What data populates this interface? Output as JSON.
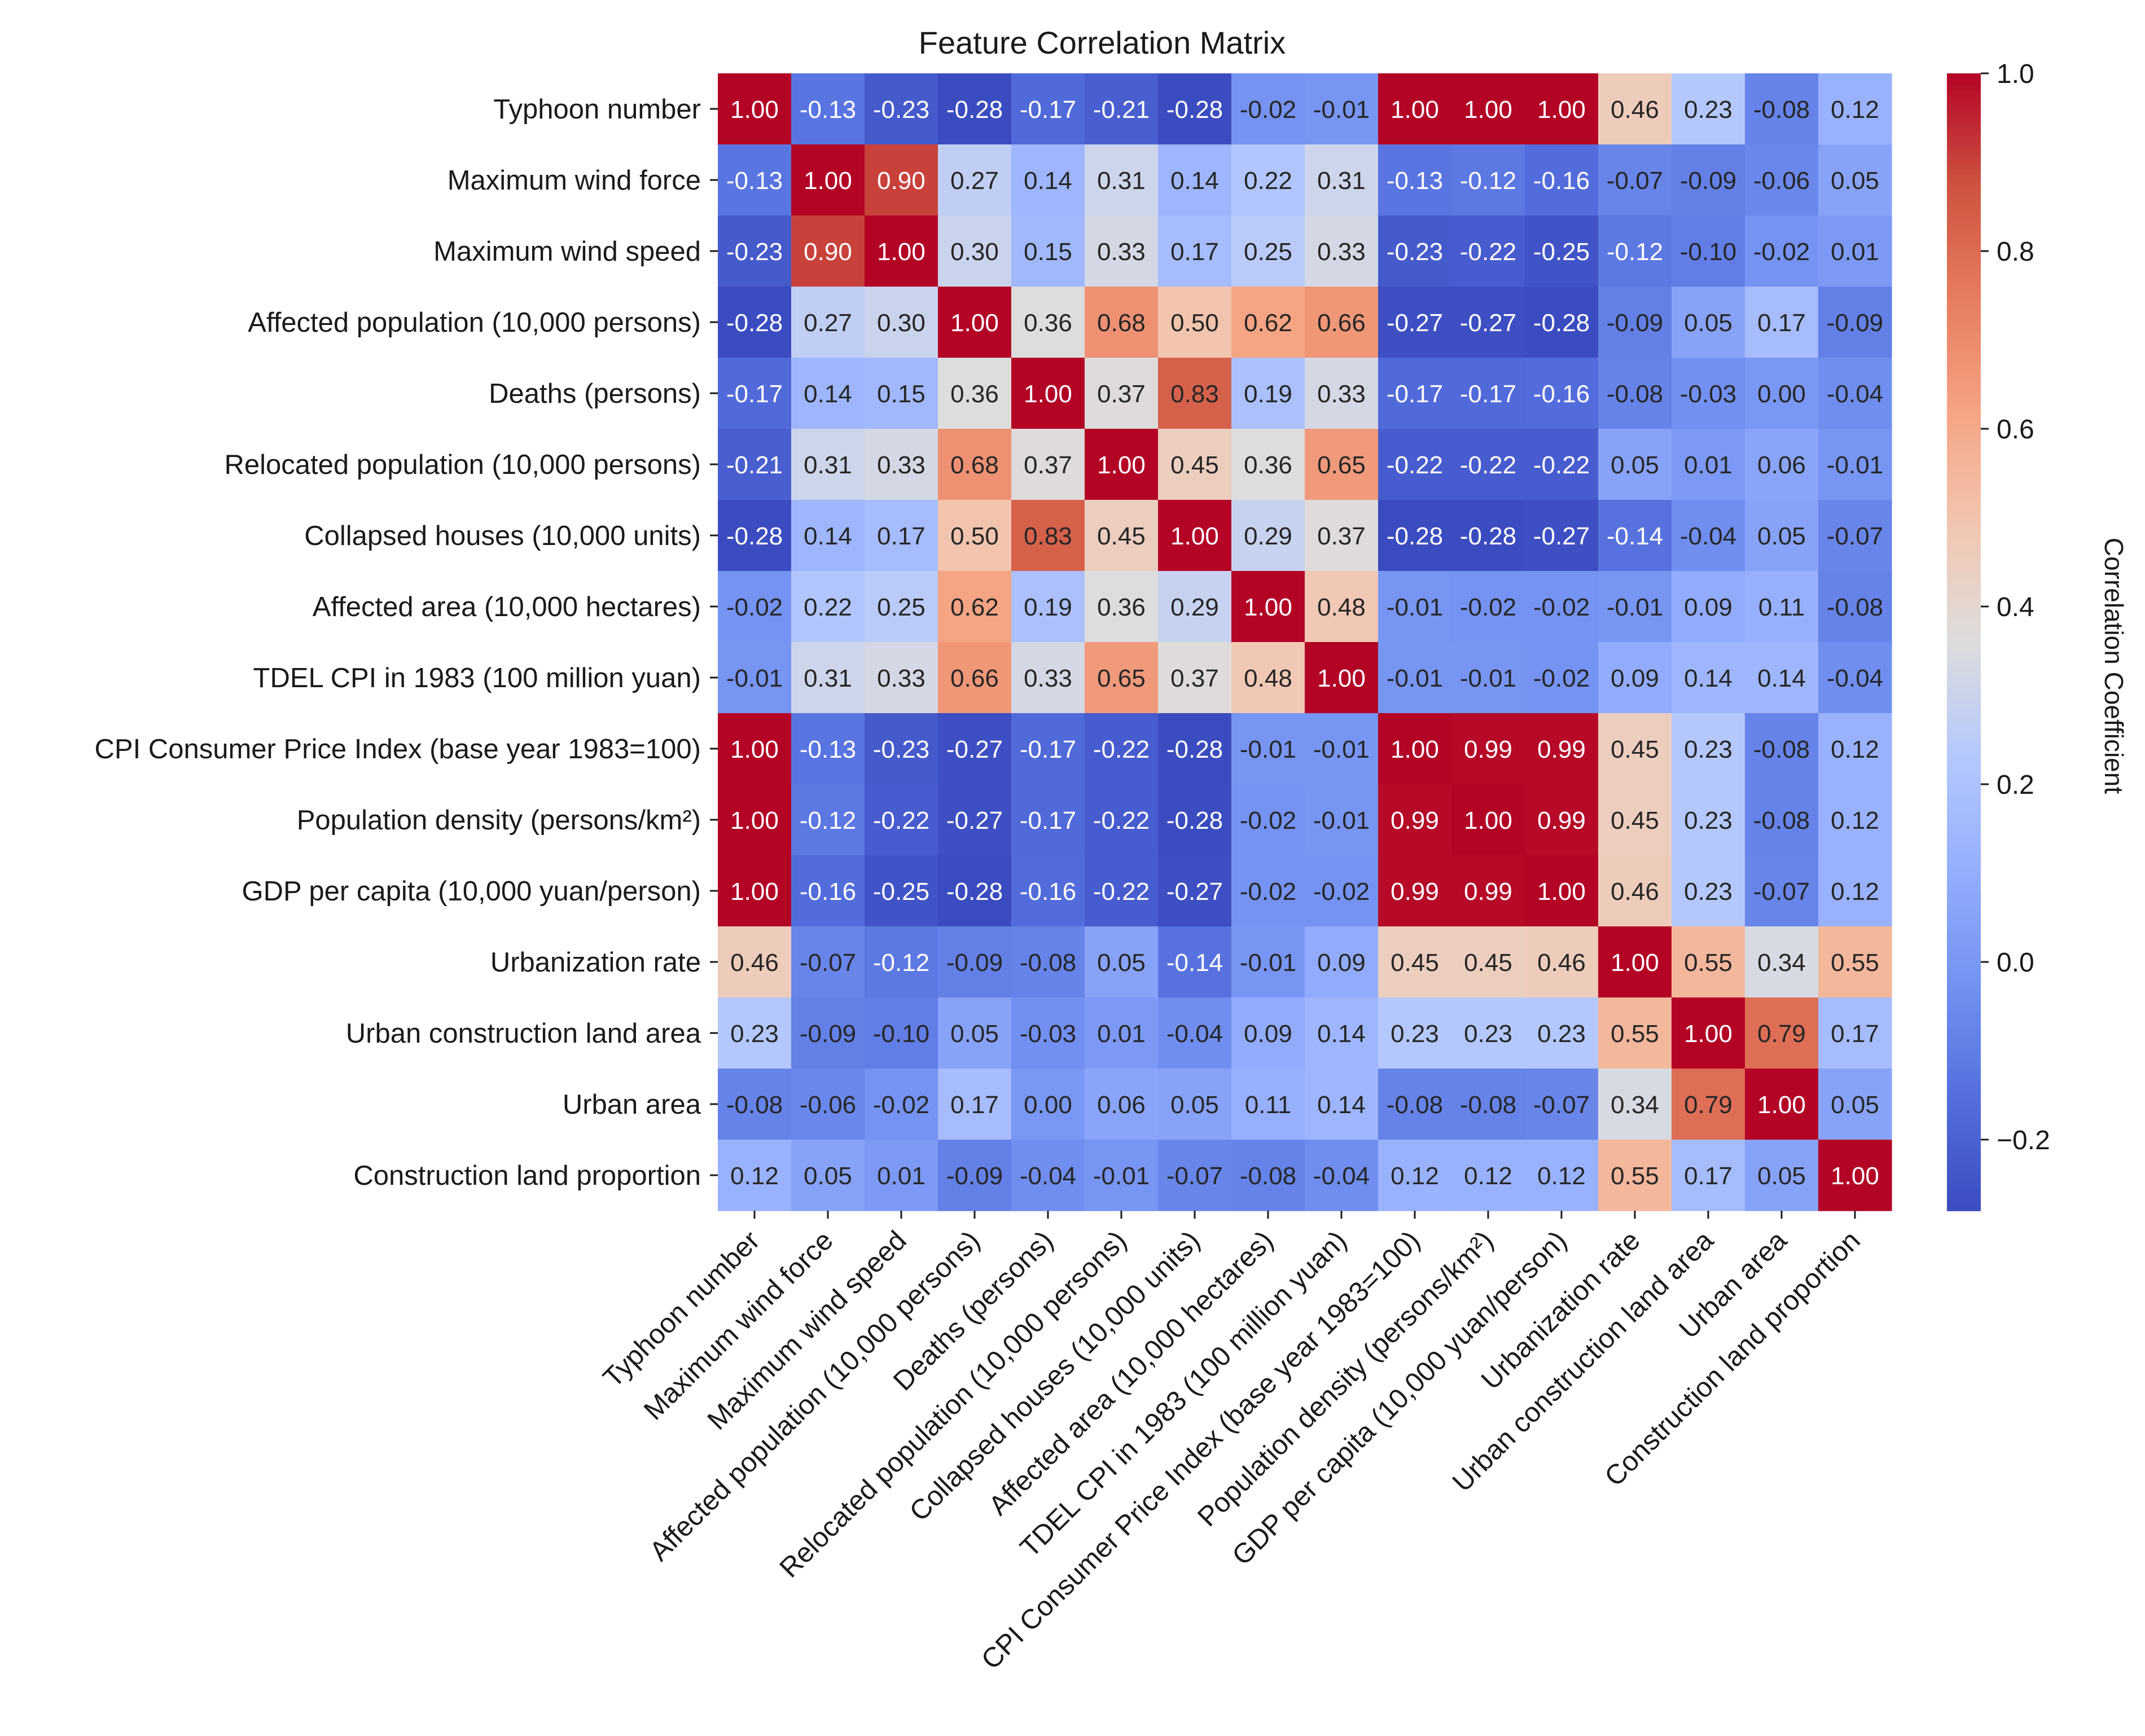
{
  "chart_data": {
    "type": "heatmap",
    "title": "Feature Correlation Matrix",
    "colormap": "coolwarm",
    "vmin": -0.28,
    "vmax": 1.0,
    "value_format": "2 decimals",
    "labels": [
      "Typhoon number",
      "Maximum wind force",
      "Maximum wind speed",
      "Affected population (10,000 persons)",
      "Deaths (persons)",
      "Relocated population (10,000 persons)",
      "Collapsed houses (10,000 units)",
      "Affected area (10,000 hectares)",
      "TDEL CPI in 1983 (100 million yuan)",
      "CPI Consumer Price Index (base year 1983=100)",
      "Population density (persons/km²)",
      "GDP per capita (10,000 yuan/person)",
      "Urbanization rate",
      "Urban construction land area",
      "Urban area",
      "Construction land proportion"
    ],
    "matrix": [
      [
        1.0,
        -0.13,
        -0.23,
        -0.28,
        -0.17,
        -0.21,
        -0.28,
        -0.02,
        -0.01,
        1.0,
        1.0,
        1.0,
        0.46,
        0.23,
        -0.08,
        0.12
      ],
      [
        -0.13,
        1.0,
        0.9,
        0.27,
        0.14,
        0.31,
        0.14,
        0.22,
        0.31,
        -0.13,
        -0.12,
        -0.16,
        -0.07,
        -0.09,
        -0.06,
        0.05
      ],
      [
        -0.23,
        0.9,
        1.0,
        0.3,
        0.15,
        0.33,
        0.17,
        0.25,
        0.33,
        -0.23,
        -0.22,
        -0.25,
        -0.12,
        -0.1,
        -0.02,
        0.01
      ],
      [
        -0.28,
        0.27,
        0.3,
        1.0,
        0.36,
        0.68,
        0.5,
        0.62,
        0.66,
        -0.27,
        -0.27,
        -0.28,
        -0.09,
        0.05,
        0.17,
        -0.09
      ],
      [
        -0.17,
        0.14,
        0.15,
        0.36,
        1.0,
        0.37,
        0.83,
        0.19,
        0.33,
        -0.17,
        -0.17,
        -0.16,
        -0.08,
        -0.03,
        0.0,
        -0.04
      ],
      [
        -0.21,
        0.31,
        0.33,
        0.68,
        0.37,
        1.0,
        0.45,
        0.36,
        0.65,
        -0.22,
        -0.22,
        -0.22,
        0.05,
        0.01,
        0.06,
        -0.01
      ],
      [
        -0.28,
        0.14,
        0.17,
        0.5,
        0.83,
        0.45,
        1.0,
        0.29,
        0.37,
        -0.28,
        -0.28,
        -0.27,
        -0.14,
        -0.04,
        0.05,
        -0.07
      ],
      [
        -0.02,
        0.22,
        0.25,
        0.62,
        0.19,
        0.36,
        0.29,
        1.0,
        0.48,
        -0.01,
        -0.02,
        -0.02,
        -0.01,
        0.09,
        0.11,
        -0.08
      ],
      [
        -0.01,
        0.31,
        0.33,
        0.66,
        0.33,
        0.65,
        0.37,
        0.48,
        1.0,
        -0.01,
        -0.01,
        -0.02,
        0.09,
        0.14,
        0.14,
        -0.04
      ],
      [
        1.0,
        -0.13,
        -0.23,
        -0.27,
        -0.17,
        -0.22,
        -0.28,
        -0.01,
        -0.01,
        1.0,
        0.99,
        0.99,
        0.45,
        0.23,
        -0.08,
        0.12
      ],
      [
        1.0,
        -0.12,
        -0.22,
        -0.27,
        -0.17,
        -0.22,
        -0.28,
        -0.02,
        -0.01,
        0.99,
        1.0,
        0.99,
        0.45,
        0.23,
        -0.08,
        0.12
      ],
      [
        1.0,
        -0.16,
        -0.25,
        -0.28,
        -0.16,
        -0.22,
        -0.27,
        -0.02,
        -0.02,
        0.99,
        0.99,
        1.0,
        0.46,
        0.23,
        -0.07,
        0.12
      ],
      [
        0.46,
        -0.07,
        -0.12,
        -0.09,
        -0.08,
        0.05,
        -0.14,
        -0.01,
        0.09,
        0.45,
        0.45,
        0.46,
        1.0,
        0.55,
        0.34,
        0.55
      ],
      [
        0.23,
        -0.09,
        -0.1,
        0.05,
        -0.03,
        0.01,
        -0.04,
        0.09,
        0.14,
        0.23,
        0.23,
        0.23,
        0.55,
        1.0,
        0.79,
        0.17
      ],
      [
        -0.08,
        -0.06,
        -0.02,
        0.17,
        0.0,
        0.06,
        0.05,
        0.11,
        0.14,
        -0.08,
        -0.08,
        -0.07,
        0.34,
        0.79,
        1.0,
        0.05
      ],
      [
        0.12,
        0.05,
        0.01,
        -0.09,
        -0.04,
        -0.01,
        -0.07,
        -0.08,
        -0.04,
        0.12,
        0.12,
        0.12,
        0.55,
        0.17,
        0.05,
        1.0
      ]
    ],
    "colorbar": {
      "label": "Correlation Coefficient",
      "ticks": [
        -0.2,
        0.0,
        0.2,
        0.4,
        0.6,
        0.8,
        1.0
      ],
      "tick_labels": [
        "−0.2",
        "0.0",
        "0.2",
        "0.4",
        "0.6",
        "0.8",
        "1.0"
      ]
    }
  }
}
